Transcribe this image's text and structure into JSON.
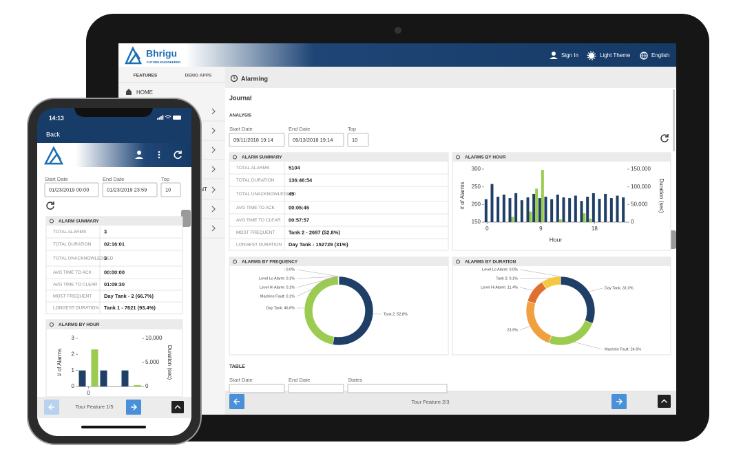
{
  "tablet": {
    "header": {
      "brand": "Bhrigu",
      "tagline": "FUTURE.ENGINEERED.",
      "sign_in": "Sign In",
      "theme": "Light Theme",
      "language": "English"
    },
    "sidebar": {
      "tabs": [
        "FEATURES",
        "DEMO APPS"
      ],
      "home": "HOME",
      "partial_item": "NT"
    },
    "page_title": "Alarming",
    "journal": "Journal",
    "analysis": "ANALYSIS",
    "filters": [
      {
        "label": "Start Date",
        "value": "09/11/2018 19:14"
      },
      {
        "label": "End Date",
        "value": "09/13/2018 19:14"
      },
      {
        "label": "Top",
        "value": "10"
      }
    ],
    "alarm_summary": {
      "title": "ALARM SUMMARY",
      "rows": [
        [
          "TOTAL ALARMS",
          "5104"
        ],
        [
          "TOTAL DURATION",
          "136:46:54"
        ],
        [
          "TOTAL UNACKNOWLEDGED",
          "45"
        ],
        [
          "AVG TIME TO ACK",
          "00:05:45"
        ],
        [
          "AVG TIME TO CLEAR",
          "00:57:57"
        ],
        [
          "MOST FREQUENT",
          "Tank 2 - 2697 (52.8%)"
        ],
        [
          "LONGEST DURATION",
          "Day Tank - 152729 (31%)"
        ]
      ]
    },
    "alarms_by_hour": {
      "title": "ALARMS BY HOUR",
      "chart_data": {
        "type": "bar",
        "x_label": "Hour",
        "y_label": "# of Alarms",
        "y2_label": "Duration (sec)",
        "x": [
          0,
          1,
          2,
          3,
          4,
          5,
          6,
          7,
          8,
          9,
          10,
          11,
          12,
          13,
          14,
          15,
          16,
          17,
          18,
          19,
          20,
          21,
          22,
          23
        ],
        "xlim": [
          -0.5,
          23.5
        ],
        "xticks": [
          0,
          9,
          18
        ],
        "ylim": [
          150,
          300
        ],
        "yticks": [
          150,
          200,
          250,
          300
        ],
        "y2lim": [
          0,
          150000
        ],
        "y2ticks": [
          0,
          {
            "value": 50000,
            "label": "50,000"
          },
          {
            "value": 100000,
            "label": "100,000"
          },
          {
            "value": 150000,
            "label": "150,000"
          }
        ],
        "series": [
          {
            "name": "# of Alarms",
            "color": "#1f3f66",
            "values": [
              215,
              258,
              222,
              228,
              218,
              232,
              212,
              220,
              230,
              218,
              222,
              215,
              228,
              220,
              218,
              225,
              210,
              222,
              232,
              216,
              230,
              218,
              225,
              220
            ]
          },
          {
            "name": "Duration (sec)",
            "color": "#9bcb4f",
            "axis": "y2",
            "values": [
              0,
              0,
              0,
              0,
              15000,
              0,
              0,
              30000,
              95000,
              148000,
              0,
              0,
              8000,
              0,
              0,
              0,
              25000,
              10000,
              0,
              0,
              0,
              0,
              0,
              0
            ]
          }
        ]
      }
    },
    "alarms_by_frequency": {
      "title": "ALARMS BY FREQUENCY",
      "chart_data": {
        "type": "pie",
        "values": [
          52.8,
          46.8,
          0.1,
          0.1,
          0.1,
          0.0
        ],
        "value_labels": [
          "Tank 2: 52.8%",
          "Day Tank: 46.8%",
          "Machine Fault: 0.1%",
          "Level Hi Alarm: 0.1%",
          "Level Lo Alarm: 0.1%",
          ": 0.0%"
        ],
        "colors": [
          "#1f3f66",
          "#9bcb4f",
          "#f0a040",
          "#e07030",
          "#f5c842",
          "#888888"
        ]
      }
    },
    "alarms_by_duration": {
      "title": "ALARMS BY DURATION",
      "chart_data": {
        "type": "pie",
        "values": [
          31.0,
          24.6,
          23.9,
          11.4,
          9.1,
          0.0
        ],
        "value_labels": [
          "Day Tank: 31.0%",
          "Machine Fault: 24.6%",
          ": 23.9%",
          "Level Hi Alarm: 11.4%",
          "Tank 2: 9.1%",
          "Level Lo Alarm: 0.0%"
        ],
        "colors": [
          "#1f3f66",
          "#9bcb4f",
          "#f0a040",
          "#e07030",
          "#f5c842",
          "#888888"
        ]
      }
    },
    "table": {
      "title": "TABLE",
      "filters": [
        "Start Date",
        "End Date",
        "States"
      ]
    },
    "footer": {
      "tour": "Tour Feature 2/3"
    }
  },
  "phone": {
    "time": "14:13",
    "back": "Back",
    "filters": [
      {
        "label": "Start Date",
        "value": "01/23/2019 00:00"
      },
      {
        "label": "End Date",
        "value": "01/23/2019 23:59"
      },
      {
        "label": "Top",
        "value": "10"
      }
    ],
    "alarm_summary": {
      "title": "ALARM SUMMARY",
      "rows": [
        [
          "TOTAL ALARMS",
          "3"
        ],
        [
          "TOTAL DURATION",
          "02:16:01"
        ],
        [
          "TOTAL UNACKNOWLEDGED",
          "3"
        ],
        [
          "AVG TIME TO ACK",
          "00:00:00"
        ],
        [
          "AVG TIME TO CLEAR",
          "01:09:30"
        ],
        [
          "MOST FREQUENT",
          "Day Tank - 2 (66.7%)"
        ],
        [
          "LONGEST DURATION",
          "Tank 1 - 7621 (93.4%)"
        ]
      ]
    },
    "alarms_by_hour": {
      "title": "ALARMS BY HOUR",
      "chart_data": {
        "type": "bar",
        "y_label": "# of Alarms",
        "y2_label": "Duration (sec)",
        "x": [
          0,
          1,
          2
        ],
        "xlim": [
          -0.5,
          2.5
        ],
        "xticks": [
          0
        ],
        "ylim": [
          0,
          3
        ],
        "yticks": [
          0,
          1,
          2,
          3
        ],
        "y2lim": [
          0,
          10000
        ],
        "y2ticks": [
          0,
          {
            "value": 5000,
            "label": "5,000"
          },
          {
            "value": 10000,
            "label": "10,000"
          }
        ],
        "series": [
          {
            "name": "# of Alarms",
            "color": "#1f3f66",
            "values": [
              1,
              1,
              1
            ]
          },
          {
            "name": "Duration (sec)",
            "color": "#9bcb4f",
            "axis": "y2",
            "values": [
              7700,
              0,
              300
            ]
          }
        ]
      }
    },
    "footer": {
      "tour": "Tour Feature 1/5"
    }
  }
}
